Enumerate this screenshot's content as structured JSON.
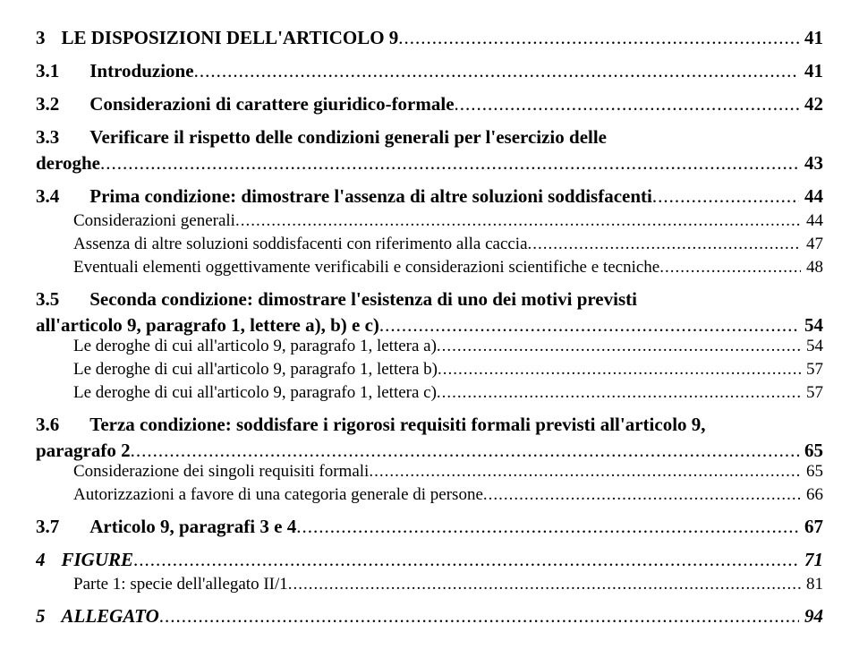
{
  "toc": {
    "e0": {
      "num": "3",
      "title": "LE DISPOSIZIONI DELL'ARTICOLO 9",
      "page": "41"
    },
    "e1": {
      "num": "3.1",
      "title": "Introduzione",
      "page": "41"
    },
    "e2": {
      "num": "3.2",
      "title": "Considerazioni di carattere giuridico-formale",
      "page": "42"
    },
    "e3": {
      "num": "3.3",
      "title": "Verificare il rispetto delle condizioni generali per l'esercizio delle",
      "title2": "deroghe",
      "page": "43"
    },
    "e4": {
      "num": "3.4",
      "title": "Prima condizione: dimostrare l'assenza di altre soluzioni soddisfacenti",
      "page": "44"
    },
    "e5": {
      "title": "Considerazioni generali",
      "page": "44"
    },
    "e6": {
      "title": "Assenza di altre soluzioni soddisfacenti con riferimento alla caccia",
      "page": "47"
    },
    "e7": {
      "title": "Eventuali elementi oggettivamente verificabili e considerazioni scientifiche e tecniche",
      "page": "48"
    },
    "e8": {
      "num": "3.5",
      "title": "Seconda condizione: dimostrare l'esistenza di uno dei motivi previsti",
      "title2": "all'articolo 9, paragrafo 1, lettere a), b) e c)",
      "page": "54"
    },
    "e9": {
      "title": "Le deroghe di cui all'articolo 9, paragrafo 1, lettera a)",
      "page": "54"
    },
    "e10": {
      "title": "Le deroghe di cui all'articolo 9, paragrafo 1, lettera b)",
      "page": "57"
    },
    "e11": {
      "title": "Le deroghe di cui all'articolo 9, paragrafo 1, lettera c)",
      "page": "57"
    },
    "e12": {
      "num": "3.6",
      "title": "Terza condizione: soddisfare i rigorosi requisiti formali previsti all'articolo 9,",
      "title2": "paragrafo 2",
      "page": "65"
    },
    "e13": {
      "title": "Considerazione dei singoli requisiti formali",
      "page": "65"
    },
    "e14": {
      "title": "Autorizzazioni a favore di una categoria generale di persone",
      "page": "66"
    },
    "e15": {
      "num": "3.7",
      "title": "Articolo 9, paragrafi 3 e 4",
      "page": "67"
    },
    "e16": {
      "num": "4",
      "title": "FIGURE",
      "page": "71"
    },
    "e17": {
      "title": "Parte 1: specie dell'allegato II/1",
      "page": "81"
    },
    "e18": {
      "num": "5",
      "title": "ALLEGATO",
      "page": "94"
    }
  },
  "style": {
    "font_family": "Times New Roman",
    "body_fontsize_pt": 14,
    "l1_fontsize_pt": 16,
    "text_color": "#000000",
    "background_color": "#ffffff",
    "leader_char": "."
  }
}
